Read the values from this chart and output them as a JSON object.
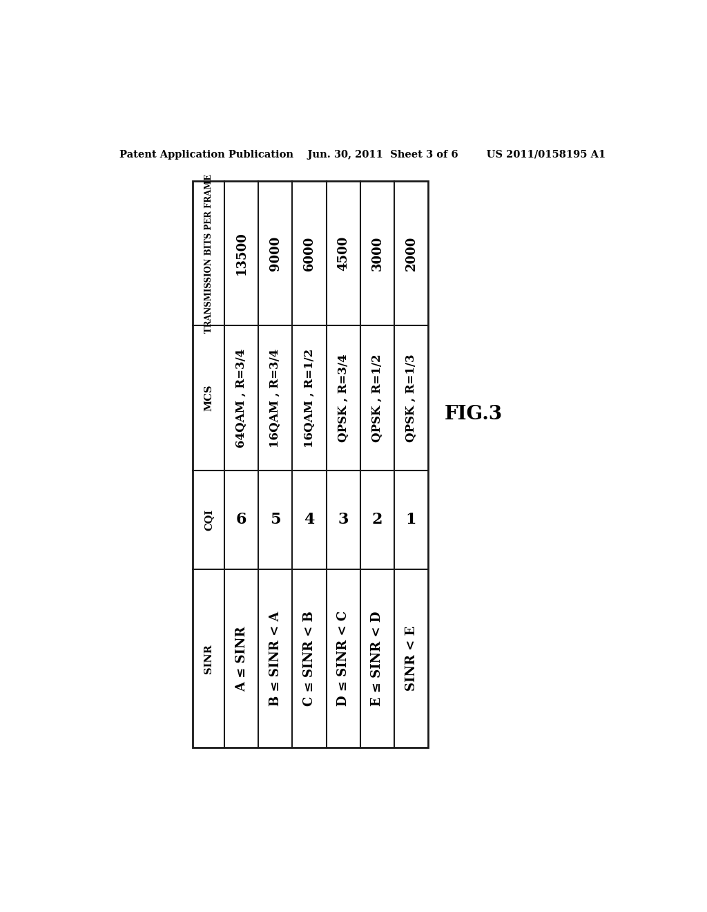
{
  "header_line": "Patent Application Publication    Jun. 30, 2011  Sheet 3 of 6        US 2011/0158195 A1",
  "fig_label": "FIG.3",
  "row_headers": [
    "TRANSMISSION BITS PER FRAME",
    "MCS",
    "CQI",
    "SINR"
  ],
  "col_data": [
    {
      "tbpf": "13500",
      "mcs": "64QAM , R=3/4",
      "cqi": "6",
      "sinr": "A ≤ SINR"
    },
    {
      "tbpf": "9000",
      "mcs": "16QAM , R=3/4",
      "cqi": "5",
      "sinr": "B ≤ SINR < A"
    },
    {
      "tbpf": "6000",
      "mcs": "16QAM , R=1/2",
      "cqi": "4",
      "sinr": "C ≤ SINR < B"
    },
    {
      "tbpf": "4500",
      "mcs": "QPSK , R=3/4",
      "cqi": "3",
      "sinr": "D ≤ SINR < C"
    },
    {
      "tbpf": "3000",
      "mcs": "QPSK , R=1/2",
      "cqi": "2",
      "sinr": "E ≤ SINR < D"
    },
    {
      "tbpf": "2000",
      "mcs": "QPSK , R=1/3",
      "cqi": "1",
      "sinr": "SINR < E"
    }
  ],
  "bg_color": "#ffffff",
  "text_color": "#000000",
  "line_color": "#1a1a1a",
  "header_fontsize": 10.5,
  "row_header_fontsize": 8.5,
  "cell_fontsize_tbpf": 13,
  "cell_fontsize_mcs": 12,
  "cell_fontsize_cqi": 16,
  "cell_fontsize_sinr": 13
}
